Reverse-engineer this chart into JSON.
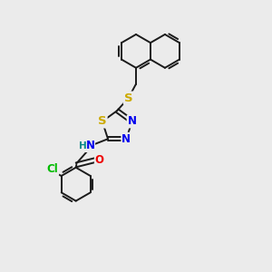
{
  "bg_color": "#ebebeb",
  "bond_color": "#1a1a1a",
  "bond_width": 1.4,
  "atom_colors": {
    "S": "#ccaa00",
    "N": "#0000ee",
    "O": "#ee0000",
    "Cl": "#00bb00",
    "C": "#1a1a1a",
    "H": "#008888"
  },
  "font_size": 8.5,
  "figsize": [
    3.0,
    3.0
  ],
  "dpi": 100
}
